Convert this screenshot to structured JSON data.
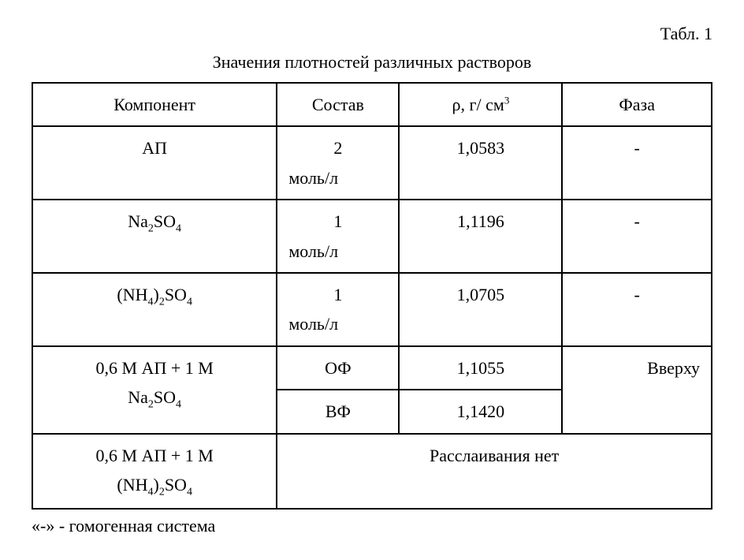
{
  "tableLabel": "Табл. 1",
  "caption": "Значения плотностей различных растворов",
  "headers": {
    "component": "Компонент",
    "sostav": "Состав",
    "rho": "ρ, г/ см",
    "rho_exp": "3",
    "phase": "Фаза"
  },
  "rows": {
    "r1": {
      "component": "АП",
      "sostav_val": "2",
      "sostav_unit": "моль/л",
      "rho": "1,0583",
      "phase": "-"
    },
    "r2": {
      "component_prefix": "Na",
      "component_sub1": "2",
      "component_mid": "SO",
      "component_sub2": "4",
      "sostav_val": "1",
      "sostav_unit": "моль/л",
      "rho": "1,1196",
      "phase": "-"
    },
    "r3": {
      "component_prefix": "(NH",
      "component_sub1": "4",
      "component_mid": ")",
      "component_sub2": "2",
      "component_mid2": "SO",
      "component_sub3": "4",
      "sostav_val": "1",
      "sostav_unit": "моль/л",
      "rho": "1,0705",
      "phase": "-"
    },
    "r4": {
      "line1": "0,6 М АП + 1 М",
      "line2_prefix": "Na",
      "line2_sub1": "2",
      "line2_mid": "SO",
      "line2_sub2": "4",
      "sostav_a": "ОФ",
      "rho_a": "1,1055",
      "sostav_b": "ВФ",
      "rho_b": "1,1420",
      "phase": "Вверху"
    },
    "r5": {
      "line1": "0,6 М АП + 1 М",
      "line2_prefix": "(NH",
      "line2_sub1": "4",
      "line2_mid": ")",
      "line2_sub2": "2",
      "line2_mid2": "SO",
      "line2_sub3": "4",
      "merged": "Расслаивания нет"
    }
  },
  "footnote": "«-» - гомогенная система"
}
